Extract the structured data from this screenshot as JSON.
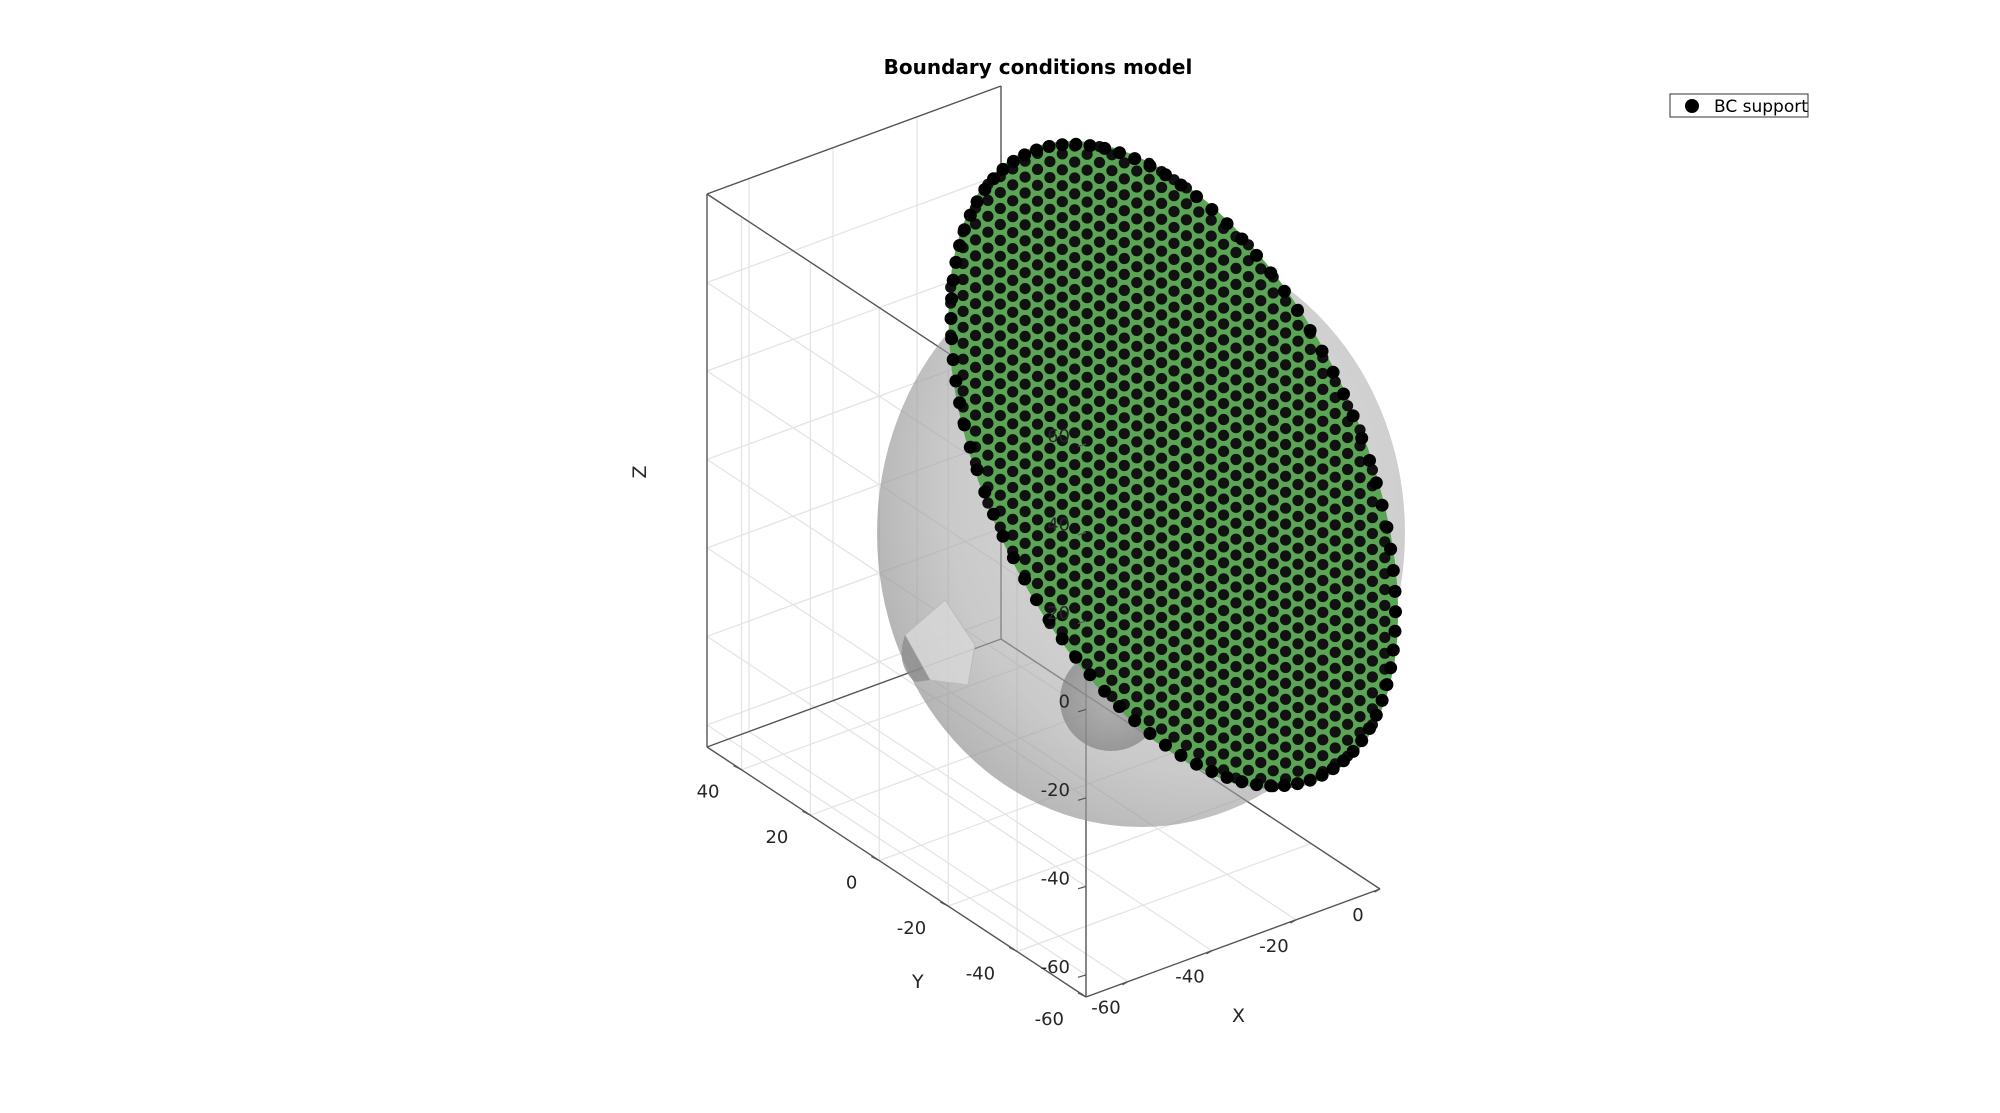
{
  "chart_data": {
    "type": "scatter",
    "title": "Boundary conditions model",
    "xlabel": "X",
    "ylabel": "Y",
    "zlabel": "Z",
    "xlim": [
      -70,
      0
    ],
    "ylim": [
      -60,
      50
    ],
    "zlim": [
      -65,
      60
    ],
    "x_ticks": [
      "-60",
      "-40",
      "-20",
      "0"
    ],
    "y_ticks": [
      "-60",
      "-40",
      "-20",
      "0",
      "20",
      "40"
    ],
    "z_ticks": [
      "-60",
      "-40",
      "-20",
      "0",
      "20",
      "40",
      "60"
    ],
    "grid": true,
    "legend": {
      "placement": "top-right",
      "entries": [
        "BC support"
      ]
    },
    "series": [
      {
        "name": "BC support",
        "marker": "filled-circle",
        "color": "#000000",
        "surface_color": "#5aa655",
        "plane": "x = 0",
        "disc_radius": 65
      }
    ],
    "sphere": {
      "color": "#9e9e9e",
      "opacity": 0.55,
      "radius": 65
    }
  }
}
